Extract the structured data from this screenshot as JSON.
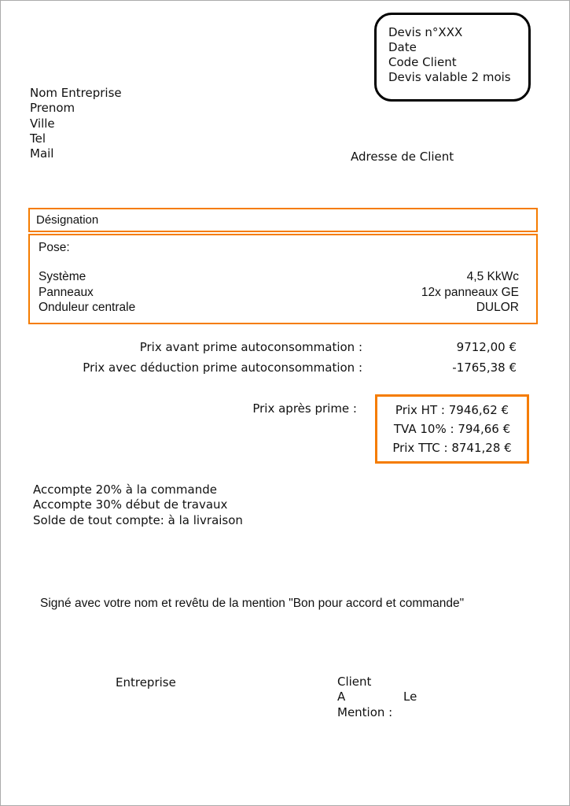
{
  "colors": {
    "accent_orange": "#F57C00",
    "page_border_gray": "#ABABAB",
    "box_border_black": "#000000",
    "text": "#111111"
  },
  "quote_box": {
    "lines": [
      "Devis n°XXX",
      "Date",
      "Code Client",
      "Devis valable 2 mois"
    ]
  },
  "company": {
    "lines": [
      "Nom Entreprise",
      "Prenom",
      "Ville",
      "Tel",
      "Mail"
    ]
  },
  "client": {
    "address_label": "Adresse de Client"
  },
  "designation": {
    "header": "Désignation",
    "pose_label": "Pose:",
    "rows": [
      {
        "label": "Système",
        "value": "4,5 KkWc"
      },
      {
        "label": "Panneaux",
        "value": "12x panneaux GE"
      },
      {
        "label": "Onduleur centrale",
        "value": "DULOR"
      }
    ]
  },
  "pricing": {
    "rows": [
      {
        "label": "Prix avant prime autoconsommation :",
        "value": "9712,00 €"
      },
      {
        "label": "Prix avec déduction prime autoconsommation :",
        "value": "-1765,38 €"
      }
    ],
    "after_prime_label": "Prix après prime :",
    "summary": [
      {
        "label": "Prix HT :",
        "value": "7946,62 €"
      },
      {
        "label": "TVA 10% :",
        "value": "794,66 €"
      },
      {
        "label": "Prix TTC :",
        "value": "8741,28 €"
      }
    ]
  },
  "payment_terms": {
    "lines": [
      "Accompte 20% à la commande",
      "Accompte 30% début de travaux",
      "Solde de tout compte: à la livraison"
    ]
  },
  "signature_note": "Signé avec votre nom et revêtu de la mention \"Bon pour accord et commande\"",
  "signature_block": {
    "entreprise_label": "Entreprise",
    "client_label": "Client",
    "a_label": "A",
    "le_label": "Le",
    "mention_label": "Mention :"
  }
}
